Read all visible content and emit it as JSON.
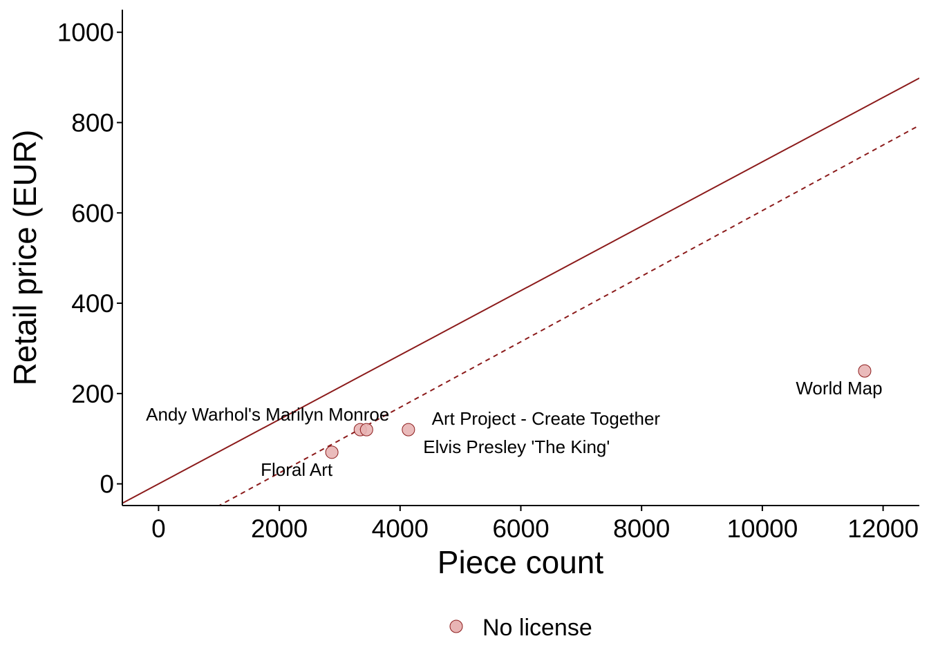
{
  "chart_data": {
    "type": "scatter",
    "xlabel": "Piece count",
    "ylabel": "Retail price (EUR)",
    "xlim": [
      -600,
      12600
    ],
    "ylim": [
      -48,
      1050
    ],
    "x_ticks": [
      0,
      2000,
      4000,
      6000,
      8000,
      10000,
      12000
    ],
    "y_ticks": [
      0,
      200,
      400,
      600,
      800,
      1000
    ],
    "grid": false,
    "legend_position": "bottom",
    "series": [
      {
        "name": "No license",
        "color": "#e8b4b4",
        "stroke": "#8b1a1a",
        "points": [
          {
            "label": "Andy Warhol's Marilyn Monroe",
            "x": 3341,
            "y": 120
          },
          {
            "label": "Elvis Presley  'The King'",
            "x": 3445,
            "y": 120
          },
          {
            "label": "Art Project - Create Together",
            "x": 4138,
            "y": 120
          },
          {
            "label": "Floral Art",
            "x": 2870,
            "y": 70
          },
          {
            "label": "World Map",
            "x": 11695,
            "y": 250
          }
        ]
      }
    ],
    "reference_lines": [
      {
        "style": "solid",
        "color": "#8b1a1a",
        "intercept": 0,
        "slope": 0.0713
      },
      {
        "style": "dashed",
        "color": "#8b1a1a",
        "intercept": -121,
        "slope": 0.0726
      }
    ]
  }
}
